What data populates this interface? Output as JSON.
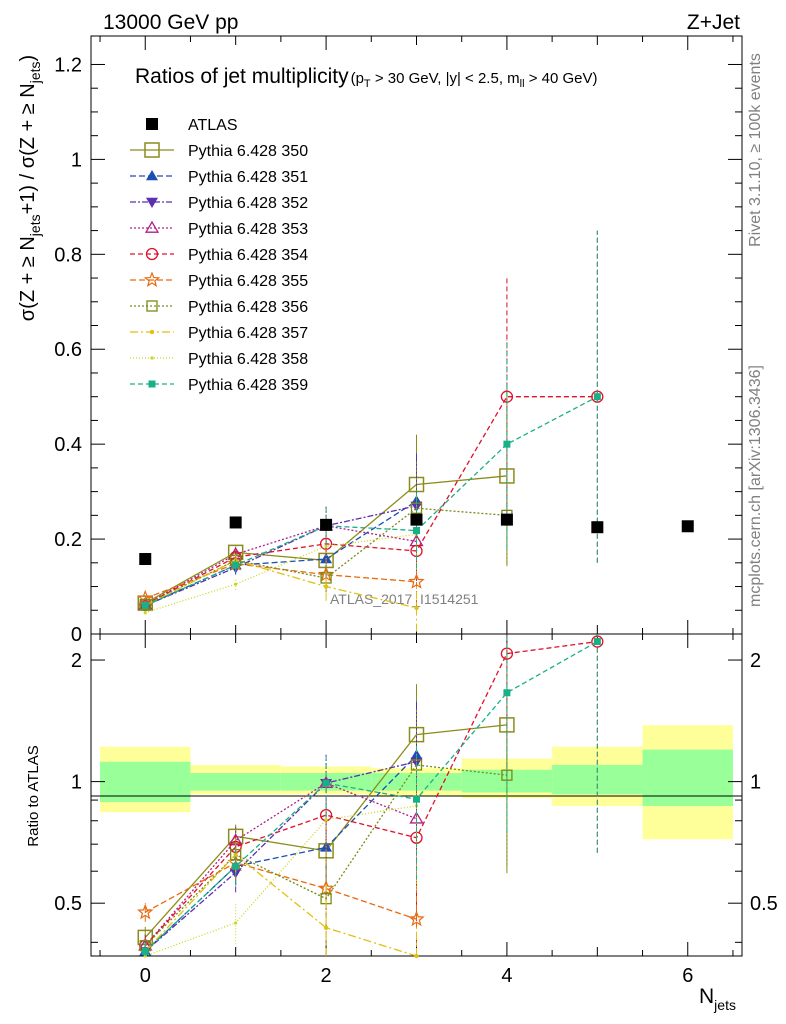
{
  "header": {
    "left": "13000 GeV pp",
    "right": "Z+Jet"
  },
  "side_labels": {
    "rivet": "Rivet 3.1.10, ≥ 100k events",
    "mcplots": "mcplots.cern.ch [arXiv:1306.3436]"
  },
  "chart_data": {
    "type": "scatter",
    "title": "Ratios of jet multiplicity",
    "title_cuts": "(p_T > 30 GeV, |y| < 2.5, m_ll > 40 GeV)",
    "analysis_tag": "ATLAS_2017_I1514251",
    "xlabel": "N_jets",
    "ylabel": "σ(Z + ≥ N_jets +1) / σ(Z + ≥ N_jets)",
    "ratio_ylabel": "Ratio to ATLAS",
    "xlim": [
      -0.6,
      6.6
    ],
    "ylim": [
      0,
      1.26
    ],
    "ratio_ylim": [
      0.37,
      2.32
    ],
    "ratio_log": true,
    "x_ticks": [
      "0",
      "2",
      "4",
      "6"
    ],
    "y_ticks": [
      "0",
      "0.2",
      "0.4",
      "0.6",
      "0.8",
      "1",
      "1.2"
    ],
    "ratio_ticks": [
      "0.5",
      "1",
      "2"
    ],
    "data": {
      "name": "ATLAS",
      "x": [
        0,
        1,
        2,
        3,
        4,
        5,
        6
      ],
      "y": [
        0.158,
        0.235,
        0.23,
        0.241,
        0.241,
        0.225,
        0.227
      ],
      "band_inner": [
        [
          0.89,
          1.12
        ],
        [
          0.95,
          1.05
        ],
        [
          0.95,
          1.05
        ],
        [
          0.95,
          1.05
        ],
        [
          0.94,
          1.07
        ],
        [
          0.93,
          1.1
        ],
        [
          0.87,
          1.2
        ]
      ],
      "band_outer": [
        [
          0.84,
          1.22
        ],
        [
          0.93,
          1.1
        ],
        [
          0.93,
          1.09
        ],
        [
          0.92,
          1.08
        ],
        [
          0.91,
          1.14
        ],
        [
          0.87,
          1.22
        ],
        [
          0.72,
          1.38
        ]
      ],
      "color": "#000000"
    },
    "series": [
      {
        "name": "Pythia 6.428 350",
        "color": "#8c8c1c",
        "marker": "square-open",
        "dash": "",
        "x": [
          0,
          1,
          2,
          3,
          4
        ],
        "y": [
          0.065,
          0.172,
          0.155,
          0.315,
          0.333
        ],
        "err": [
          0.004,
          0.012,
          0.035,
          0.105,
          0.19
        ]
      },
      {
        "name": "Pythia 6.428 351",
        "color": "#1a4fb3",
        "marker": "triangle-up",
        "dash": "6,3",
        "x": [
          0,
          1,
          2,
          3
        ],
        "y": [
          0.06,
          0.145,
          0.158,
          0.28
        ],
        "err": [
          0.004,
          0.015,
          0.04,
          0.1
        ]
      },
      {
        "name": "Pythia 6.428 352",
        "color": "#5a2fb0",
        "marker": "triangle-down",
        "dash": "6,2,2,2",
        "x": [
          0,
          1,
          2,
          3
        ],
        "y": [
          0.06,
          0.14,
          0.228,
          0.27
        ],
        "err": [
          0.004,
          0.015,
          0.04,
          0.11
        ]
      },
      {
        "name": "Pythia 6.428 353",
        "color": "#b0208a",
        "marker": "triangle-open",
        "dash": "2,2",
        "x": [
          0,
          1,
          2,
          3
        ],
        "y": [
          0.062,
          0.168,
          0.228,
          0.195
        ],
        "err": [
          0.004,
          0.015,
          0.04,
          0.08
        ]
      },
      {
        "name": "Pythia 6.428 354",
        "color": "#e0102a",
        "marker": "circle-open",
        "dash": "5,3",
        "x": [
          0,
          1,
          2,
          3,
          4,
          5
        ],
        "y": [
          0.062,
          0.162,
          0.19,
          0.175,
          0.5,
          0.5
        ],
        "err": [
          0.004,
          0.015,
          0.04,
          0.08,
          0.25,
          0.35
        ]
      },
      {
        "name": "Pythia 6.428 355",
        "color": "#e86a10",
        "marker": "star-open",
        "dash": "6,3",
        "x": [
          0,
          1,
          2,
          3
        ],
        "y": [
          0.075,
          0.148,
          0.125,
          0.11
        ],
        "err": [
          0.004,
          0.015,
          0.035,
          0.07
        ]
      },
      {
        "name": "Pythia 6.428 356",
        "color": "#7a8a14",
        "marker": "square-open-small",
        "dash": "2,2",
        "x": [
          0,
          1,
          2,
          3,
          4
        ],
        "y": [
          0.062,
          0.155,
          0.118,
          0.265,
          0.25
        ],
        "err": [
          0.004,
          0.015,
          0.03,
          0.1,
          0.1
        ]
      },
      {
        "name": "Pythia 6.428 357",
        "color": "#e0c010",
        "marker": "dot",
        "dash": "8,3,2,3",
        "x": [
          0,
          1,
          2,
          3
        ],
        "y": [
          0.06,
          0.155,
          0.1,
          0.055
        ],
        "err": [
          0.004,
          0.015,
          0.03,
          0.05
        ]
      },
      {
        "name": "Pythia 6.428 358",
        "color": "#c8d81c",
        "marker": "dot-small",
        "dash": "1,2",
        "x": [
          0,
          1,
          2,
          3
        ],
        "y": [
          0.045,
          0.105,
          0.185,
          0.21
        ],
        "err": [
          0.004,
          0.012,
          0.04,
          0.08
        ]
      },
      {
        "name": "Pythia 6.428 359",
        "color": "#19b088",
        "marker": "square-filled",
        "dash": "5,3",
        "x": [
          0,
          1,
          2,
          3,
          4,
          5
        ],
        "y": [
          0.06,
          0.145,
          0.228,
          0.218,
          0.4,
          0.5
        ],
        "err": [
          0.004,
          0.015,
          0.04,
          0.08,
          0.22,
          0.35
        ]
      }
    ]
  }
}
